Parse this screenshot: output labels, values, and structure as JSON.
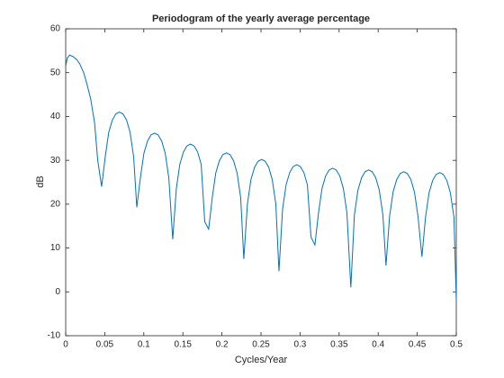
{
  "chart_data": {
    "type": "line",
    "title": "Periodogram of the yearly average percentage",
    "xlabel": "Cycles/Year",
    "ylabel": "dB",
    "color": "#0072bd",
    "xlim": [
      0,
      0.5
    ],
    "ylim": [
      -10,
      60
    ],
    "xticks": [
      0,
      0.05,
      0.1,
      0.15,
      0.2,
      0.25,
      0.3,
      0.35,
      0.4,
      0.45,
      0.5
    ],
    "yticks": [
      -10,
      0,
      10,
      20,
      30,
      40,
      50,
      60
    ],
    "x": [
      0,
      0.002,
      0.005,
      0.009,
      0.014,
      0.018,
      0.023,
      0.027,
      0.032,
      0.037,
      0.041,
      0.046,
      0.0506,
      0.0551,
      0.0597,
      0.0642,
      0.0688,
      0.0733,
      0.0779,
      0.0824,
      0.087,
      0.091,
      0.0956,
      0.1001,
      0.1047,
      0.1092,
      0.1138,
      0.1183,
      0.1229,
      0.1274,
      0.132,
      0.137,
      0.1416,
      0.1461,
      0.1507,
      0.1552,
      0.1598,
      0.1643,
      0.1689,
      0.1734,
      0.178,
      0.183,
      0.1876,
      0.1921,
      0.1967,
      0.2012,
      0.2058,
      0.2103,
      0.2149,
      0.2194,
      0.224,
      0.228,
      0.2326,
      0.2371,
      0.2417,
      0.2462,
      0.2508,
      0.2553,
      0.2599,
      0.2644,
      0.269,
      0.273,
      0.2776,
      0.2821,
      0.2867,
      0.2912,
      0.2958,
      0.3003,
      0.3049,
      0.3094,
      0.314,
      0.319,
      0.3236,
      0.3281,
      0.3327,
      0.3372,
      0.3418,
      0.3463,
      0.3509,
      0.3554,
      0.36,
      0.365,
      0.3696,
      0.3741,
      0.3787,
      0.3832,
      0.3878,
      0.3923,
      0.3969,
      0.4014,
      0.406,
      0.41,
      0.4146,
      0.4191,
      0.4237,
      0.4282,
      0.4328,
      0.4373,
      0.4419,
      0.4464,
      0.451,
      0.456,
      0.4606,
      0.4651,
      0.4697,
      0.4742,
      0.4788,
      0.4833,
      0.4879,
      0.4924,
      0.497,
      0.5
    ],
    "values": [
      51.5,
      53.3,
      54,
      53.7,
      53,
      52,
      50,
      47.5,
      44,
      38.5,
      30,
      24,
      30.8,
      36.4,
      39.2,
      40.6,
      41,
      40.6,
      39.2,
      36.4,
      30.8,
      19.3,
      26,
      31.6,
      34.4,
      35.8,
      36.2,
      35.8,
      34.4,
      31.6,
      26,
      12,
      23.5,
      29.1,
      31.9,
      33.3,
      33.7,
      33.3,
      31.9,
      29.1,
      16,
      14.3,
      21.5,
      27.1,
      29.9,
      31.3,
      31.7,
      31.3,
      29.9,
      27.1,
      21.5,
      7.5,
      20,
      25.6,
      28.4,
      29.8,
      30.2,
      29.8,
      28.4,
      25.6,
      20,
      4.7,
      18.8,
      24.4,
      27.2,
      28.6,
      29,
      28.6,
      27.2,
      24.4,
      12.5,
      10.7,
      18,
      23.6,
      26.4,
      27.8,
      28.2,
      27.8,
      26.4,
      23.6,
      18,
      1,
      17.6,
      23.2,
      26,
      27.4,
      27.8,
      27.4,
      26,
      23.2,
      17.6,
      6,
      17.2,
      22.8,
      25.6,
      27,
      27.4,
      27,
      25.6,
      22.8,
      17.2,
      8,
      17,
      22.6,
      25.4,
      26.8,
      27.2,
      26.8,
      25.4,
      22.6,
      17,
      -2
    ]
  }
}
